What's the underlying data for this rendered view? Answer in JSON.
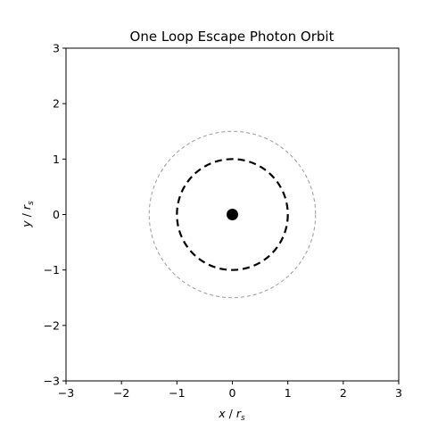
{
  "chart_data": {
    "type": "line",
    "title": "One Loop Escape Photon Orbit",
    "xlabel": {
      "var": "x",
      "sep": " / ",
      "unit_base": "r",
      "unit_sub": "s"
    },
    "ylabel": {
      "var": "y",
      "sep": " / ",
      "unit_base": "r",
      "unit_sub": "s"
    },
    "xlim": [
      -3,
      3
    ],
    "ylim": [
      -3,
      3
    ],
    "xticks": [
      -3,
      -2,
      -1,
      0,
      1,
      2,
      3
    ],
    "yticks": [
      -3,
      -2,
      -1,
      0,
      1,
      2,
      3
    ],
    "xtick_labels": [
      "−3",
      "−2",
      "−1",
      "0",
      "1",
      "2",
      "3"
    ],
    "ytick_labels": [
      "−3",
      "−2",
      "−1",
      "0",
      "1",
      "2",
      "3"
    ],
    "grid": false,
    "legend": "none",
    "series": [
      {
        "kind": "circle",
        "center": [
          0,
          0
        ],
        "radius": 1.5,
        "color": "#999999",
        "style": "dashed-thin"
      },
      {
        "kind": "circle",
        "center": [
          0,
          0
        ],
        "radius": 1.0,
        "color": "#000000",
        "style": "dashed-thick"
      },
      {
        "kind": "point",
        "center": [
          0,
          0
        ],
        "color": "#000000",
        "style": "filled-dot"
      }
    ]
  }
}
